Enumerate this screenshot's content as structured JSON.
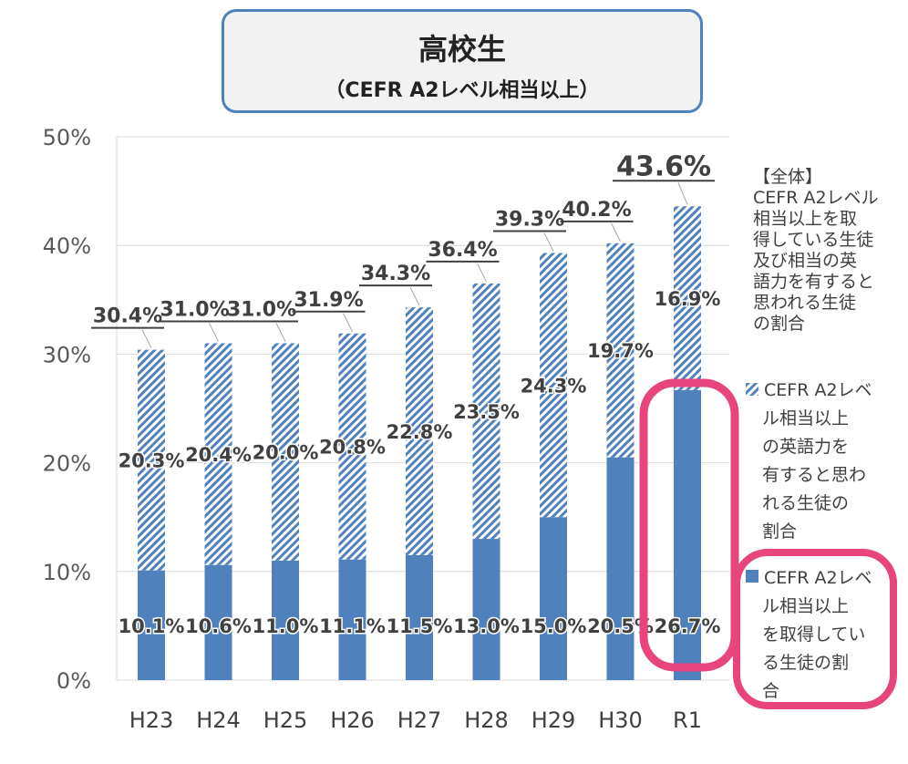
{
  "title": {
    "main": "高校生",
    "sub": "（CEFR A2レベル相当以上）"
  },
  "chart_data": {
    "type": "bar",
    "stacked": true,
    "categories": [
      "H23",
      "H24",
      "H25",
      "H26",
      "H27",
      "H28",
      "H29",
      "H30",
      "R1"
    ],
    "ylim": [
      0,
      50
    ],
    "y_ticks": [
      "0%",
      "10%",
      "20%",
      "30%",
      "40%",
      "50%"
    ],
    "series": [
      {
        "name": "CEFR A2レベル相当以上を取得している生徒の割合",
        "values": [
          10.1,
          10.6,
          11.0,
          11.1,
          11.5,
          13.0,
          15.0,
          20.5,
          26.7
        ],
        "labels": [
          "10.1%",
          "10.6%",
          "11.0%",
          "11.1%",
          "11.5%",
          "13.0%",
          "15.0%",
          "20.5%",
          "26.7%"
        ],
        "color": "#4f81bd",
        "pattern": "solid"
      },
      {
        "name": "CEFR A2レベル相当以上の英語力を有すると思われる生徒の割合",
        "values": [
          20.3,
          20.4,
          20.0,
          20.8,
          22.8,
          23.5,
          24.3,
          19.7,
          16.9
        ],
        "labels": [
          "20.3%",
          "20.4%",
          "20.0%",
          "20.8%",
          "22.8%",
          "23.5%",
          "24.3%",
          "19.7%",
          "16.9%"
        ],
        "color": "#4f81bd",
        "pattern": "hatched"
      }
    ],
    "totals": {
      "name": "【全体】CEFR A2レベル相当以上を取得している生徒及び相当の英語力を有すると思われる生徒の割合",
      "values": [
        30.4,
        31.0,
        31.0,
        31.9,
        34.3,
        36.4,
        39.3,
        40.2,
        43.6
      ],
      "labels": [
        "30.4%",
        "31.0%",
        "31.0%",
        "31.9%",
        "34.3%",
        "36.4%",
        "39.3%",
        "40.2%",
        "43.6%"
      ]
    },
    "highlight": {
      "category": "R1",
      "color": "#e8457f"
    },
    "legend": {
      "total": [
        "【全体】",
        "CEFR A2レベル",
        "相当以上を取",
        "得している生徒",
        "及び相当の英",
        "語力を有すると",
        "思われる生徒",
        "の割合"
      ],
      "hatched": [
        "CEFR A2レベ",
        "ル相当以上",
        "の英語力を",
        "有すると思わ",
        "れる生徒の",
        "割合"
      ],
      "solid": [
        "CEFR A2レベ",
        "ル相当以上",
        "を取得してい",
        "る生徒の割",
        "合"
      ]
    },
    "grid": true,
    "legend_position": "right"
  }
}
